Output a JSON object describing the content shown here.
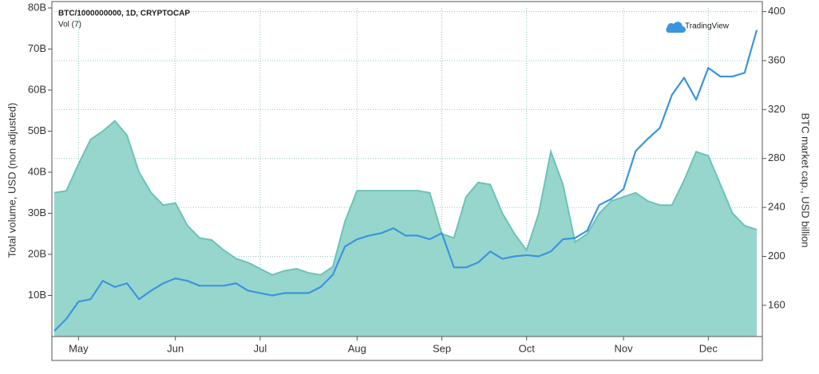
{
  "chart_data": {
    "type": "line",
    "brand": "TradingView",
    "y_label": "Total volume, USD (non adjusted)",
    "y2_label": "BTC market cap., USD billion",
    "categories": [
      null,
      null,
      "May",
      null,
      null,
      null,
      null,
      null,
      null,
      null,
      "Jun",
      null,
      null,
      null,
      null,
      null,
      null,
      "Jul",
      null,
      null,
      null,
      null,
      null,
      null,
      null,
      "Aug",
      null,
      null,
      null,
      null,
      null,
      null,
      "Sep",
      null,
      null,
      null,
      null,
      null,
      null,
      "Oct",
      null,
      null,
      null,
      null,
      null,
      null,
      null,
      "Nov",
      null,
      null,
      null,
      null,
      null,
      null,
      "Dec",
      null,
      null,
      null,
      null
    ],
    "series": [
      {
        "name": "Vol (7)",
        "type": "area",
        "color": "#97d6cd",
        "line_color": "#6cc3b7",
        "axis": "y",
        "values": [
          35,
          35.5,
          42,
          48,
          50,
          52.5,
          49,
          40,
          35,
          32,
          32.5,
          27,
          24,
          23.5,
          21,
          19,
          18,
          16.5,
          15,
          16,
          16.5,
          15.5,
          15,
          17,
          28,
          35.5,
          35.5,
          35.5,
          35.5,
          35.5,
          35.5,
          35,
          25,
          24,
          34,
          37.5,
          37,
          30,
          25,
          21,
          30,
          45,
          37,
          23,
          25,
          30,
          33,
          34,
          35,
          33,
          32,
          32,
          38,
          45,
          44,
          37,
          30,
          27,
          26
        ]
      },
      {
        "name": "BTC/1000000000, 1D, CRYPTOCAP",
        "type": "line",
        "color": "#3a95e0",
        "axis": "y2",
        "values": [
          139,
          149,
          163,
          165,
          180,
          175,
          178,
          165,
          172,
          178,
          182,
          180,
          176,
          176,
          176,
          178,
          172,
          170,
          168,
          170,
          170,
          170,
          175,
          185,
          208,
          214,
          217,
          219,
          223,
          217,
          217,
          214,
          219,
          191,
          191,
          195,
          204,
          198,
          200,
          201,
          200,
          204,
          214,
          215,
          221,
          242,
          247,
          255,
          286,
          296,
          305,
          332,
          346,
          328,
          354,
          347,
          347,
          350,
          385
        ]
      }
    ],
    "ylim": [
      0,
      80
    ],
    "yticks": [
      {
        "value": 10,
        "label": "10B"
      },
      {
        "value": 20,
        "label": "20B"
      },
      {
        "value": 30,
        "label": "30B"
      },
      {
        "value": 40,
        "label": "40B"
      },
      {
        "value": 50,
        "label": "50B"
      },
      {
        "value": 60,
        "label": "60B"
      },
      {
        "value": 70,
        "label": "70B"
      },
      {
        "value": 80,
        "label": "80B"
      }
    ],
    "y2lim": [
      134.5,
      403
    ],
    "y2ticks": [
      160,
      200,
      240,
      280,
      320,
      360,
      400
    ],
    "grid": true
  }
}
